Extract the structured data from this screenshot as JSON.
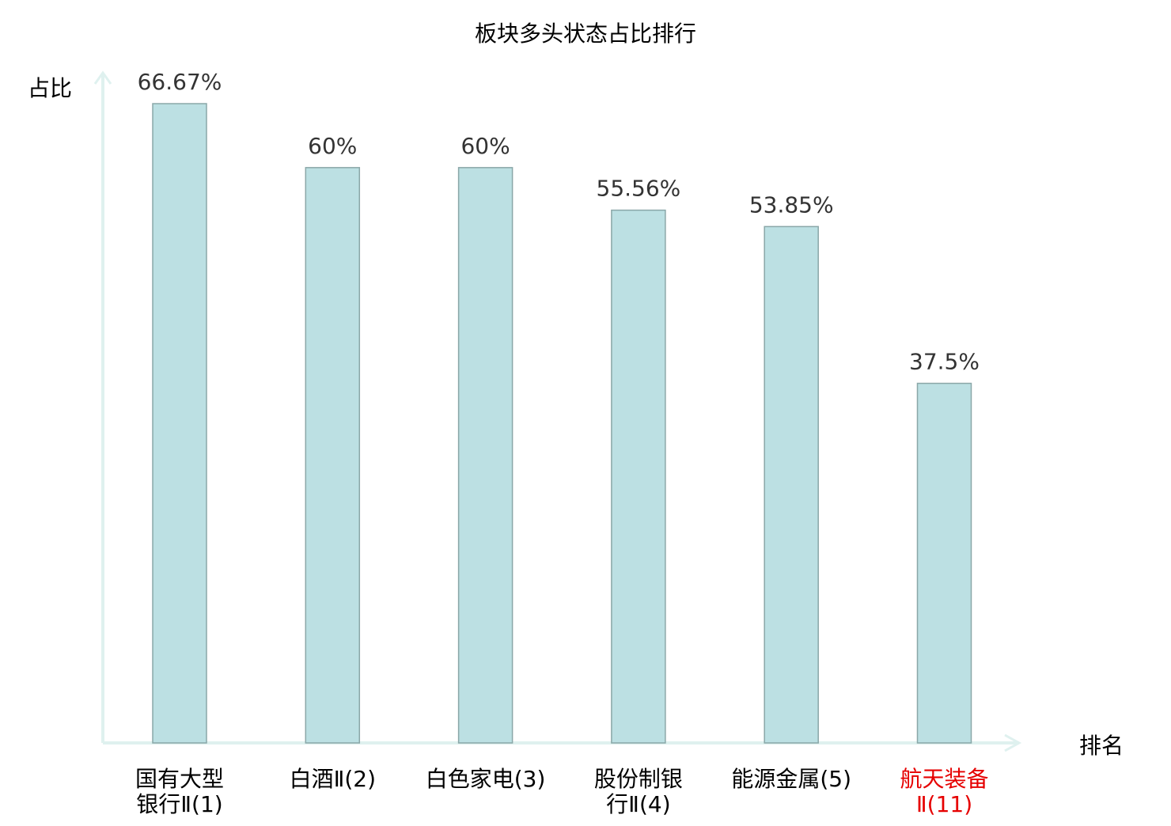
{
  "chart_data": {
    "type": "bar",
    "title": "板块多头状态占比排行",
    "xlabel": "排名",
    "ylabel": "占比",
    "categories": [
      {
        "lines": [
          "国有大型",
          "银行Ⅱ(1)"
        ],
        "highlight": false
      },
      {
        "lines": [
          "白酒Ⅱ(2)"
        ],
        "highlight": false
      },
      {
        "lines": [
          "白色家电(3)"
        ],
        "highlight": false
      },
      {
        "lines": [
          "股份制银",
          "行Ⅱ(4)"
        ],
        "highlight": false
      },
      {
        "lines": [
          "能源金属(5)"
        ],
        "highlight": false
      },
      {
        "lines": [
          "航天装备",
          "Ⅱ(11)"
        ],
        "highlight": true
      }
    ],
    "values": [
      66.67,
      60,
      60,
      55.56,
      53.85,
      37.5
    ],
    "data_labels": [
      "66.67%",
      "60%",
      "60%",
      "55.56%",
      "53.85%",
      "37.5%"
    ],
    "ylim": [
      0,
      66.67
    ],
    "grid": false,
    "colors": {
      "bar_fill": "#bce0e3",
      "bar_stroke": "#8aa7a8",
      "axis": "#dff1ef",
      "label": "#000000",
      "data_label": "#333333",
      "highlight": "#e60000"
    }
  }
}
